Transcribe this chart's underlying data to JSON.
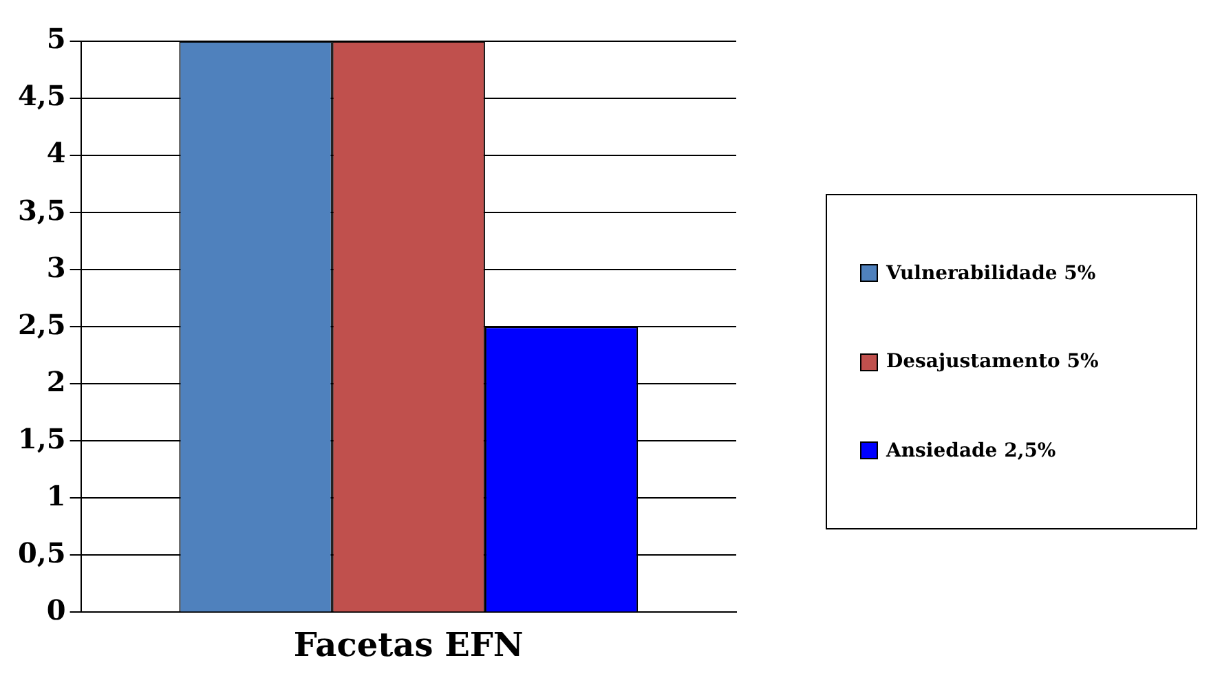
{
  "chart_data": {
    "type": "bar",
    "categories": [
      "Facetas EFN"
    ],
    "series": [
      {
        "name": "Vulnerabilidade 5%",
        "color": "#4f81bd",
        "values": [
          5
        ]
      },
      {
        "name": "Desajustamento 5%",
        "color": "#c0504d",
        "values": [
          5
        ]
      },
      {
        "name": "Ansiedade 2,5%",
        "color": "#0000ff",
        "values": [
          2.5
        ]
      }
    ],
    "ylim": [
      0,
      5
    ],
    "yticks": [
      0,
      {
        "value": 0.5,
        "label": "0,5"
      },
      1,
      {
        "value": 1.5,
        "label": "1,5"
      },
      2,
      {
        "value": 2.5,
        "label": "2,5"
      },
      3,
      {
        "value": 3.5,
        "label": "3,5"
      },
      4,
      {
        "value": 4.5,
        "label": "4,5"
      },
      5
    ],
    "grid": "y",
    "legend": "right"
  }
}
